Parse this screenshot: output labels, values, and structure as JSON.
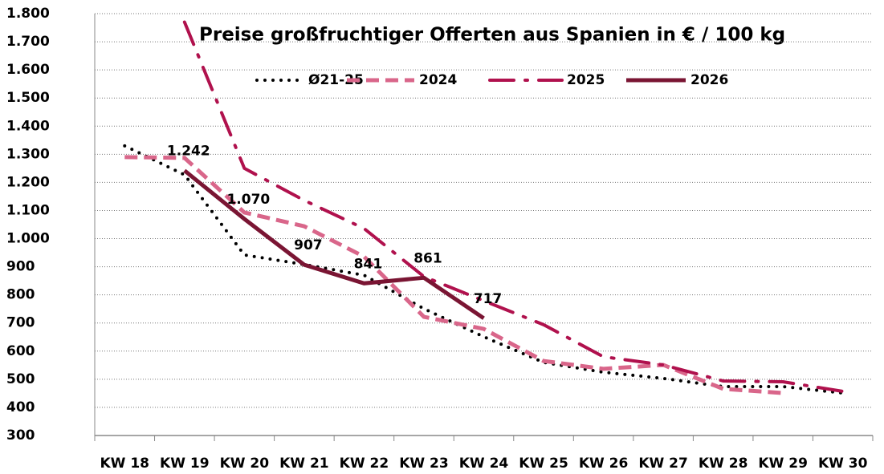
{
  "chart_data": {
    "type": "line",
    "title": "Preise großfruchtiger Offerten aus Spanien in € / 100 kg",
    "categories": [
      "KW 18",
      "KW 19",
      "KW 20",
      "KW 21",
      "KW 22",
      "KW 23",
      "KW 24",
      "KW 25",
      "KW 26",
      "KW 27",
      "KW 28",
      "KW 29",
      "KW 30"
    ],
    "series": [
      {
        "name": "Ø21-25",
        "color": "#000000",
        "style": "dotted",
        "values": [
          1330,
          1227,
          942,
          908,
          870,
          751,
          651,
          560,
          525,
          503,
          474,
          474,
          451
        ]
      },
      {
        "name": "2024",
        "color": "#d9668a",
        "style": "dashed",
        "values": [
          1290,
          1287,
          1093,
          1044,
          936,
          722,
          679,
          565,
          537,
          551,
          466,
          451,
          null
        ]
      },
      {
        "name": "2025",
        "color": "#b0114d",
        "style": "dashdot",
        "values": [
          null,
          1770,
          1250,
          1136,
          1036,
          865,
          779,
          694,
          580,
          551,
          494,
          491,
          457
        ]
      },
      {
        "name": "2026",
        "color": "#7a1533",
        "style": "solid",
        "values": [
          null,
          1242,
          1070,
          907,
          841,
          861,
          717,
          null,
          null,
          null,
          null,
          null,
          null
        ],
        "value_labels": [
          null,
          "1.242",
          "1.070",
          "907",
          "841",
          "861",
          "717",
          null,
          null,
          null,
          null,
          null,
          null
        ]
      }
    ],
    "ylim": [
      300,
      1800
    ],
    "yticks": [
      {
        "value": 300,
        "label": "300"
      },
      {
        "value": 400,
        "label": "400"
      },
      {
        "value": 500,
        "label": "500"
      },
      {
        "value": 600,
        "label": "600"
      },
      {
        "value": 700,
        "label": "700"
      },
      {
        "value": 800,
        "label": "800"
      },
      {
        "value": 900,
        "label": "900"
      },
      {
        "value": 1000,
        "label": "1.000"
      },
      {
        "value": 1100,
        "label": "1.100"
      },
      {
        "value": 1200,
        "label": "1.200"
      },
      {
        "value": 1300,
        "label": "1.300"
      },
      {
        "value": 1400,
        "label": "1.400"
      },
      {
        "value": 1500,
        "label": "1.500"
      },
      {
        "value": 1600,
        "label": "1.600"
      },
      {
        "value": 1700,
        "label": "1.700"
      },
      {
        "value": 1800,
        "label": "1.800"
      }
    ],
    "grid": true
  }
}
